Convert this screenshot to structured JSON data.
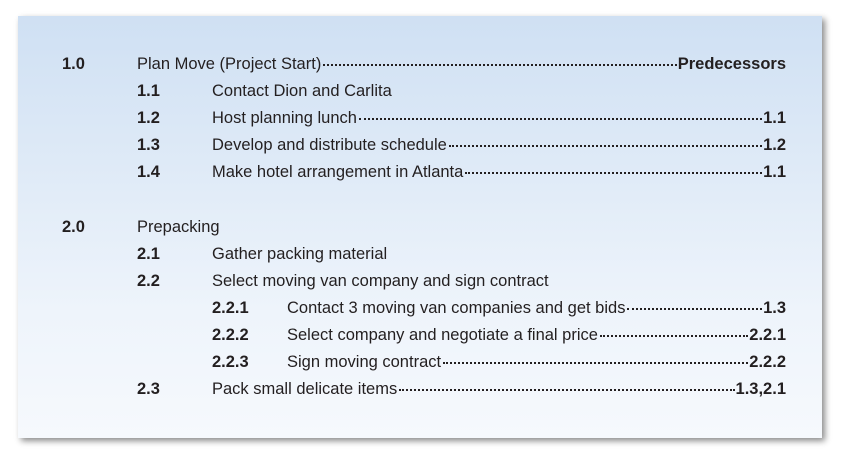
{
  "predecessors_heading": "Predecessors",
  "items": [
    {
      "number": "1.0",
      "label": "Plan Move (Project Start)"
    },
    {
      "number": "1.1",
      "label": "Contact Dion and Carlita"
    },
    {
      "number": "1.2",
      "label": "Host planning lunch",
      "predecessor": "1.1"
    },
    {
      "number": "1.3",
      "label": "Develop and distribute schedule",
      "predecessor": "1.2"
    },
    {
      "number": "1.4",
      "label": "Make hotel arrangement in Atlanta",
      "predecessor": "1.1"
    },
    {
      "number": "2.0",
      "label": "Prepacking"
    },
    {
      "number": "2.1",
      "label": "Gather packing material"
    },
    {
      "number": "2.2",
      "label": "Select moving van company and sign contract"
    },
    {
      "number": "2.2.1",
      "label": "Contact 3 moving van companies and get bids",
      "predecessor": "1.3"
    },
    {
      "number": "2.2.2",
      "label": "Select company and negotiate a final price",
      "predecessor": "2.2.1"
    },
    {
      "number": "2.2.3",
      "label": "Sign moving contract",
      "predecessor": "2.2.2"
    },
    {
      "number": "2.3",
      "label": "Pack small delicate items",
      "predecessor": "1.3,2.1"
    }
  ]
}
